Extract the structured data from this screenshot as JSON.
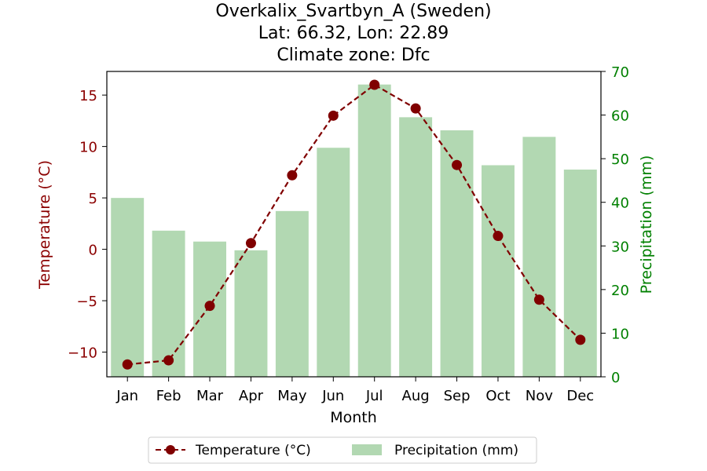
{
  "chart_data": {
    "type": "bar+line",
    "title_lines": [
      "Overkalix_Svartbyn_A (Sweden)",
      "Lat: 66.32, Lon: 22.89",
      "Climate zone: Dfc"
    ],
    "xlabel": "Month",
    "ylabel_left": "Temperature (°C)",
    "ylabel_right": "Precipitation (mm)",
    "categories": [
      "Jan",
      "Feb",
      "Mar",
      "Apr",
      "May",
      "Jun",
      "Jul",
      "Aug",
      "Sep",
      "Oct",
      "Nov",
      "Dec"
    ],
    "temp_ylim": [
      -12.4,
      17.3
    ],
    "precip_ylim": [
      0,
      70
    ],
    "temp_ticks": [
      15,
      10,
      5,
      0,
      -5,
      -10
    ],
    "temp_tick_labels": [
      "15",
      "10",
      "5",
      "0",
      "−5",
      "−10"
    ],
    "precip_ticks": [
      70,
      60,
      50,
      40,
      30,
      20,
      10,
      0
    ],
    "series": [
      {
        "name": "Temperature (°C)",
        "kind": "line",
        "axis": "left",
        "color": "#800000",
        "values": [
          -11.2,
          -10.8,
          -5.5,
          0.6,
          7.2,
          13.0,
          16.0,
          13.7,
          8.2,
          1.3,
          -4.9,
          -8.8
        ]
      },
      {
        "name": "Precipitation (mm)",
        "kind": "bar",
        "axis": "right",
        "color": "#b2d8b2",
        "values": [
          41,
          33.5,
          31,
          29,
          38,
          52.5,
          67,
          59.5,
          56.5,
          48.5,
          55,
          47.5
        ]
      }
    ],
    "grid": false,
    "legend_position": "bottom-center",
    "colors": {
      "temp_axis": "#8b0000",
      "precip_axis": "#008000",
      "text": "#000000"
    }
  }
}
